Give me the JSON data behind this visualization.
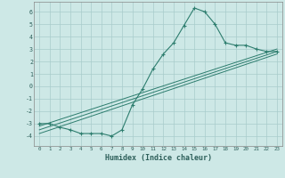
{
  "xlabel": "Humidex (Indice chaleur)",
  "xlim": [
    -0.5,
    23.5
  ],
  "ylim": [
    -4.8,
    6.8
  ],
  "yticks": [
    -4,
    -3,
    -2,
    -1,
    0,
    1,
    2,
    3,
    4,
    5,
    6
  ],
  "xtick_labels": [
    "0",
    "1",
    "2",
    "3",
    "4",
    "5",
    "6",
    "7",
    "8",
    "9",
    "10",
    "11",
    "12",
    "13",
    "14",
    "15",
    "16",
    "17",
    "18",
    "19",
    "20",
    "21",
    "22",
    "23"
  ],
  "background_color": "#cde8e6",
  "grid_color": "#a8cccb",
  "line_color": "#2d7d6e",
  "line1_x": [
    0,
    1,
    2,
    3,
    4,
    5,
    6,
    7,
    8,
    9,
    10,
    11,
    12,
    13,
    14,
    15,
    16,
    17,
    18,
    19,
    20,
    21,
    22,
    23
  ],
  "line1_y": [
    -3.0,
    -3.0,
    -3.3,
    -3.5,
    -3.8,
    -3.8,
    -3.8,
    -4.0,
    -3.5,
    -1.5,
    -0.2,
    1.4,
    2.6,
    3.5,
    4.9,
    6.3,
    6.0,
    5.0,
    3.5,
    3.3,
    3.3,
    3.0,
    2.8,
    2.8
  ],
  "line2_x": [
    0,
    23
  ],
  "line2_y": [
    -3.8,
    2.6
  ],
  "line3_x": [
    0,
    23
  ],
  "line3_y": [
    -3.2,
    3.0
  ],
  "line4_x": [
    0,
    23
  ],
  "line4_y": [
    -3.5,
    2.8
  ]
}
